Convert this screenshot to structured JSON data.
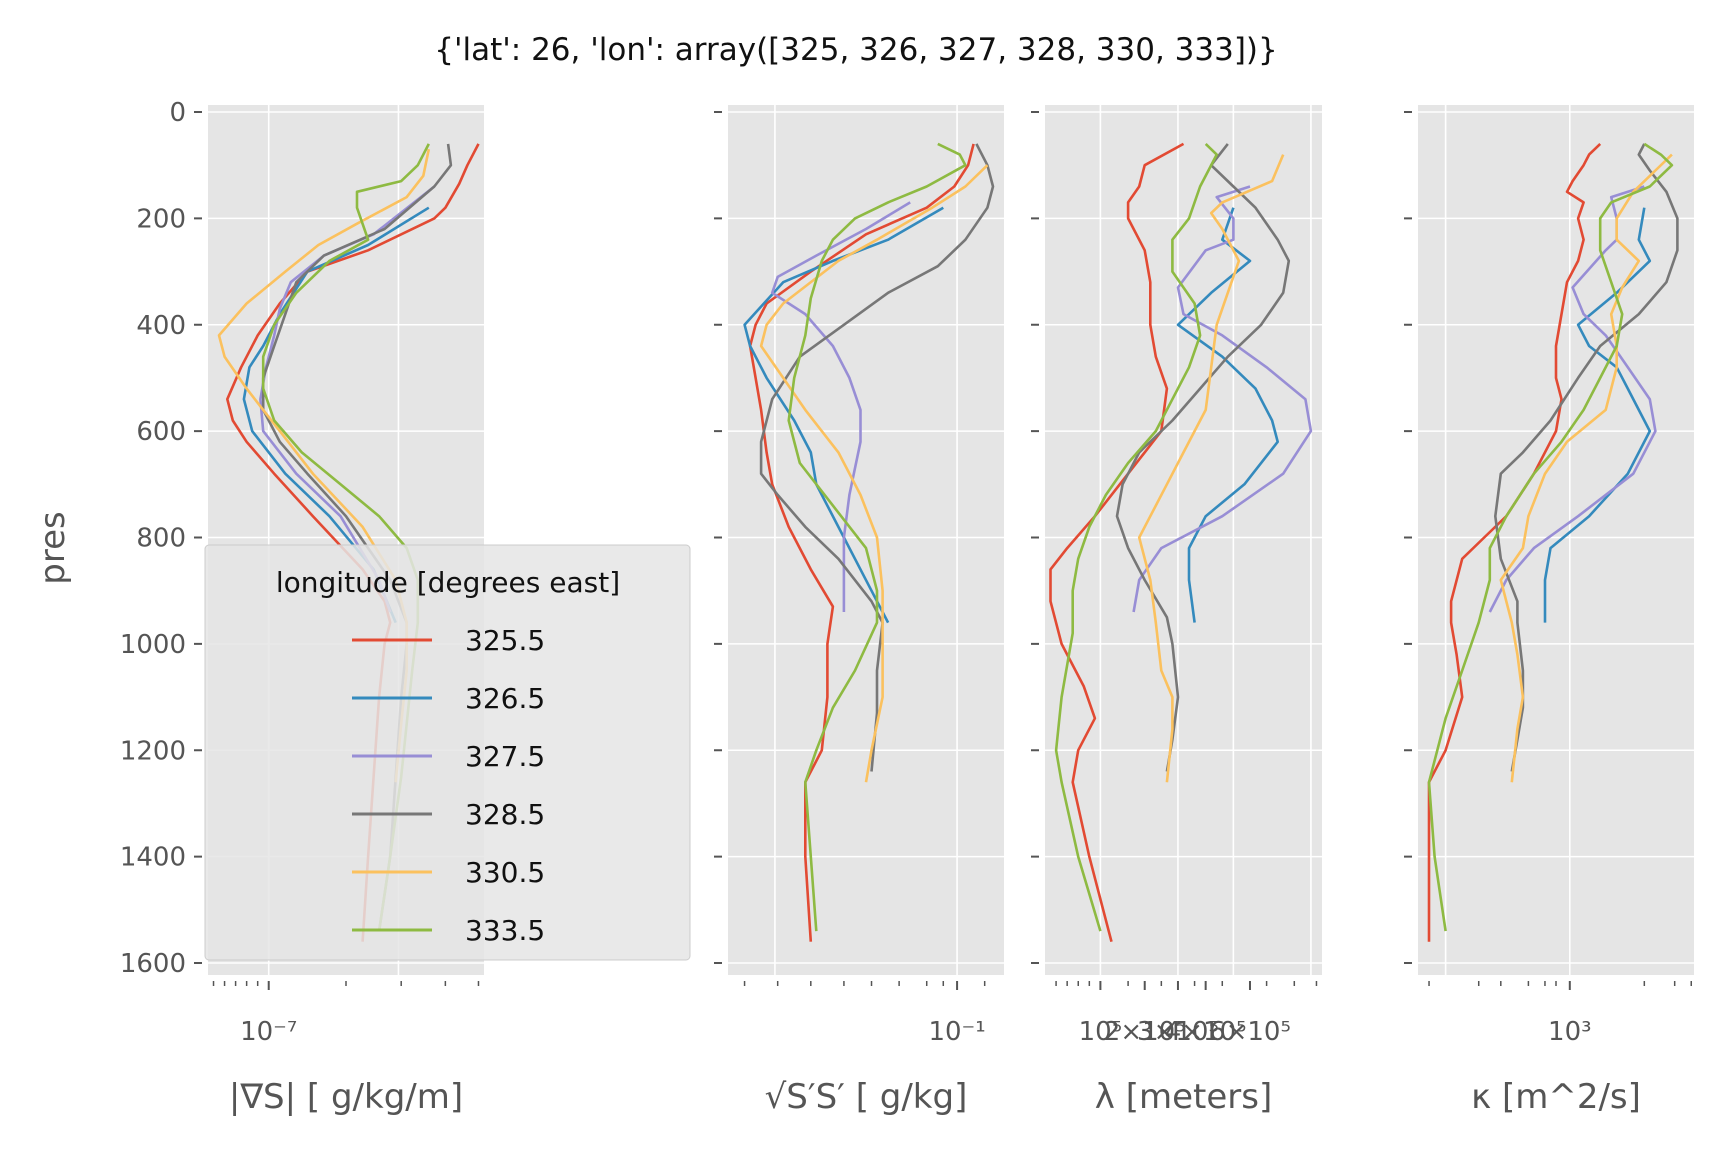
{
  "figure": {
    "title": "{'lat': 26, 'lon': array([325, 326, 327, 328, 330, 333])}"
  },
  "colors": [
    "#E24A33",
    "#348ABD",
    "#988ED5",
    "#777777",
    "#FBC15E",
    "#8EBA42"
  ],
  "chart_data": [
    {
      "type": "line",
      "id": "grad-s",
      "xlabel": "|∇S| [ g/kg/m]",
      "ylabel": "pres",
      "xscale": "log",
      "xticks": [
        {
          "label": "10⁻⁷"
        }
      ],
      "yticks": [
        "0",
        "200",
        "400",
        "600",
        "800",
        "1000",
        "1200",
        "1400",
        "1600"
      ],
      "ylim": [
        1630,
        0
      ],
      "grid": true,
      "series": [
        {
          "name": "325.5"
        },
        {
          "name": "326.5"
        },
        {
          "name": "327.5"
        },
        {
          "name": "328.5"
        },
        {
          "name": "330.5"
        },
        {
          "name": "333.5"
        }
      ]
    },
    {
      "type": "line",
      "id": "ss-rms",
      "xlabel": "√S′S′ [ g/kg]",
      "xscale": "log",
      "xticks": [
        {
          "label": "10⁻¹"
        }
      ],
      "ylim": [
        1630,
        0
      ],
      "grid": true
    },
    {
      "type": "line",
      "id": "lambda",
      "xlabel": "λ [meters]",
      "xscale": "log",
      "xticks": [
        {
          "label": "10⁵"
        },
        {
          "label": "2×10⁵"
        },
        {
          "label": "3×10⁵"
        },
        {
          "label": "4×10⁵"
        },
        {
          "label": "6×10⁵"
        }
      ],
      "ylim": [
        1630,
        0
      ],
      "grid": true
    },
    {
      "type": "line",
      "id": "kappa",
      "xlabel": "κ [m^2/s]",
      "xscale": "log",
      "xticks": [
        {
          "label": "10³"
        }
      ],
      "ylim": [
        1630,
        0
      ],
      "grid": true
    }
  ],
  "legend": {
    "title": "longitude [degrees east]",
    "placement": "lower-right of first panel",
    "entries": [
      "325.5",
      "326.5",
      "327.5",
      "328.5",
      "330.5",
      "333.5"
    ]
  }
}
